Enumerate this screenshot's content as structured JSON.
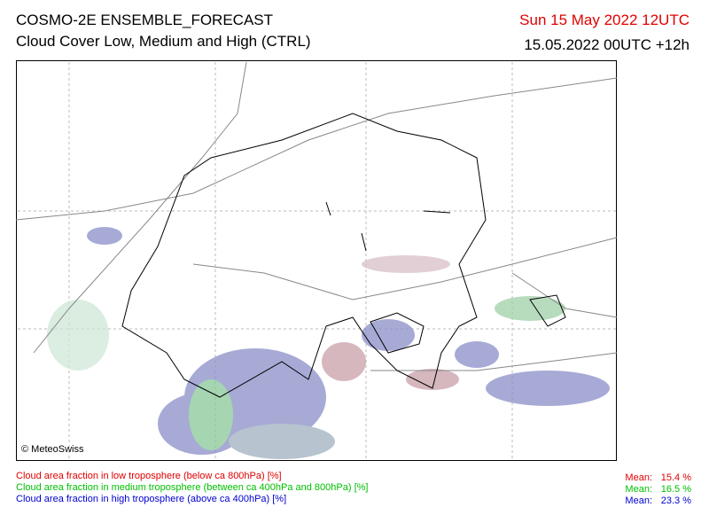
{
  "header": {
    "title": "COSMO-2E ENSEMBLE_FORECAST",
    "subtitle": "Cloud Cover Low, Medium and High (CTRL)",
    "valid_time": "Sun 15 May 2022 12UTC",
    "run": "15.05.2022 00UTC +12h"
  },
  "map": {
    "credit": "© MeteoSwiss"
  },
  "legend": {
    "items": [
      {
        "label": "Cloud area fraction in low troposphere (below ca 800hPa) [%]",
        "mean_label": "Mean:",
        "mean": "15.4 %"
      },
      {
        "label": "Cloud area fraction in medium troposphere (between ca 400hPa and 800hPa) [%]",
        "mean_label": "Mean:",
        "mean": "16.5 %"
      },
      {
        "label": "Cloud area fraction in high troposphere (above ca 400hPa) [%]",
        "mean_label": "Mean:",
        "mean": "23.3 %"
      }
    ]
  }
}
